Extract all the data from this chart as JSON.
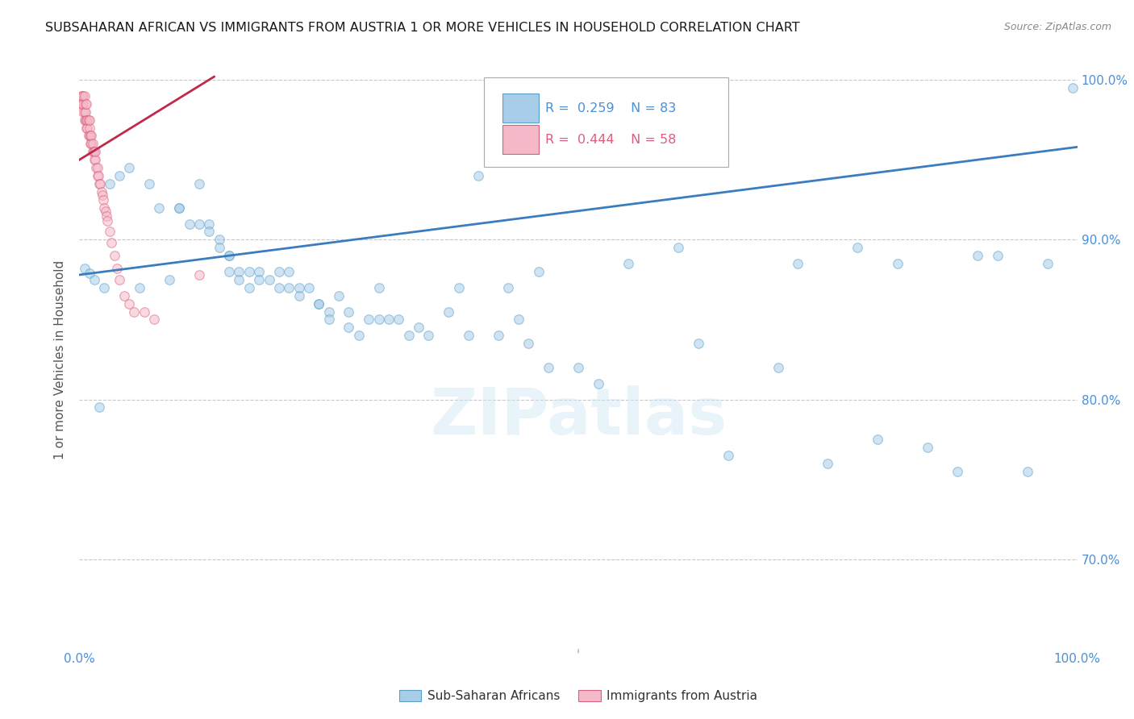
{
  "title": "SUBSAHARAN AFRICAN VS IMMIGRANTS FROM AUSTRIA 1 OR MORE VEHICLES IN HOUSEHOLD CORRELATION CHART",
  "source": "Source: ZipAtlas.com",
  "ylabel": "1 or more Vehicles in Household",
  "legend_blue_R": "0.259",
  "legend_blue_N": "83",
  "legend_pink_R": "0.444",
  "legend_pink_N": "58",
  "legend_blue_label": "Sub-Saharan Africans",
  "legend_pink_label": "Immigrants from Austria",
  "watermark_text": "ZIPatlas",
  "xlim": [
    0.0,
    1.0
  ],
  "ylim": [
    0.645,
    1.005
  ],
  "yticks": [
    0.7,
    0.8,
    0.9,
    1.0
  ],
  "ytick_labels": [
    "70.0%",
    "80.0%",
    "90.0%",
    "100.0%"
  ],
  "blue_scatter_x": [
    0.005,
    0.01,
    0.015,
    0.02,
    0.025,
    0.03,
    0.04,
    0.05,
    0.06,
    0.07,
    0.08,
    0.09,
    0.1,
    0.1,
    0.11,
    0.12,
    0.12,
    0.13,
    0.13,
    0.14,
    0.14,
    0.15,
    0.15,
    0.15,
    0.16,
    0.16,
    0.17,
    0.17,
    0.18,
    0.18,
    0.19,
    0.2,
    0.2,
    0.21,
    0.21,
    0.22,
    0.22,
    0.23,
    0.24,
    0.24,
    0.25,
    0.25,
    0.26,
    0.27,
    0.27,
    0.28,
    0.29,
    0.3,
    0.3,
    0.31,
    0.32,
    0.33,
    0.34,
    0.35,
    0.37,
    0.38,
    0.39,
    0.4,
    0.42,
    0.43,
    0.44,
    0.45,
    0.46,
    0.47,
    0.5,
    0.52,
    0.55,
    0.6,
    0.62,
    0.65,
    0.7,
    0.72,
    0.75,
    0.78,
    0.8,
    0.82,
    0.85,
    0.88,
    0.9,
    0.92,
    0.95,
    0.97,
    0.995
  ],
  "blue_scatter_y": [
    0.882,
    0.879,
    0.875,
    0.795,
    0.87,
    0.935,
    0.94,
    0.945,
    0.87,
    0.935,
    0.92,
    0.875,
    0.92,
    0.92,
    0.91,
    0.91,
    0.935,
    0.91,
    0.905,
    0.9,
    0.895,
    0.89,
    0.88,
    0.89,
    0.88,
    0.875,
    0.87,
    0.88,
    0.88,
    0.875,
    0.875,
    0.88,
    0.87,
    0.87,
    0.88,
    0.87,
    0.865,
    0.87,
    0.86,
    0.86,
    0.855,
    0.85,
    0.865,
    0.855,
    0.845,
    0.84,
    0.85,
    0.87,
    0.85,
    0.85,
    0.85,
    0.84,
    0.845,
    0.84,
    0.855,
    0.87,
    0.84,
    0.94,
    0.84,
    0.87,
    0.85,
    0.835,
    0.88,
    0.82,
    0.82,
    0.81,
    0.885,
    0.895,
    0.835,
    0.765,
    0.82,
    0.885,
    0.76,
    0.895,
    0.775,
    0.885,
    0.77,
    0.755,
    0.89,
    0.89,
    0.755,
    0.885,
    0.995
  ],
  "pink_scatter_x": [
    0.002,
    0.002,
    0.003,
    0.003,
    0.004,
    0.004,
    0.004,
    0.005,
    0.005,
    0.005,
    0.006,
    0.006,
    0.006,
    0.007,
    0.007,
    0.007,
    0.008,
    0.008,
    0.009,
    0.009,
    0.01,
    0.01,
    0.01,
    0.011,
    0.011,
    0.012,
    0.012,
    0.013,
    0.013,
    0.014,
    0.015,
    0.015,
    0.016,
    0.016,
    0.017,
    0.018,
    0.018,
    0.019,
    0.02,
    0.021,
    0.022,
    0.023,
    0.024,
    0.025,
    0.026,
    0.027,
    0.028,
    0.03,
    0.032,
    0.035,
    0.038,
    0.04,
    0.045,
    0.05,
    0.055,
    0.065,
    0.075,
    0.12
  ],
  "pink_scatter_y": [
    0.985,
    0.99,
    0.985,
    0.99,
    0.98,
    0.985,
    0.99,
    0.975,
    0.98,
    0.99,
    0.975,
    0.98,
    0.985,
    0.97,
    0.975,
    0.985,
    0.97,
    0.975,
    0.965,
    0.975,
    0.965,
    0.97,
    0.975,
    0.96,
    0.965,
    0.96,
    0.965,
    0.955,
    0.96,
    0.955,
    0.95,
    0.955,
    0.95,
    0.955,
    0.945,
    0.94,
    0.945,
    0.94,
    0.935,
    0.935,
    0.93,
    0.928,
    0.925,
    0.92,
    0.918,
    0.915,
    0.912,
    0.905,
    0.898,
    0.89,
    0.882,
    0.875,
    0.865,
    0.86,
    0.855,
    0.855,
    0.85,
    0.878
  ],
  "blue_line_x": [
    0.0,
    1.0
  ],
  "blue_line_y_start": 0.878,
  "blue_line_y_end": 0.958,
  "pink_line_x": [
    0.0,
    0.135
  ],
  "pink_line_y_start": 0.95,
  "pink_line_y_end": 1.002,
  "blue_dot_color": "#a8cde8",
  "blue_edge_color": "#5a9fc9",
  "pink_dot_color": "#f5b8c8",
  "pink_edge_color": "#d95f7f",
  "blue_line_color": "#3a7dbf",
  "pink_line_color": "#c0294a",
  "marker_size": 70,
  "marker_alpha": 0.55,
  "grid_color": "#c8c8c8",
  "background_color": "#ffffff",
  "title_fontsize": 11.5,
  "tick_label_color": "#4a90d9",
  "ylabel_color": "#555555",
  "source_color": "#888888"
}
